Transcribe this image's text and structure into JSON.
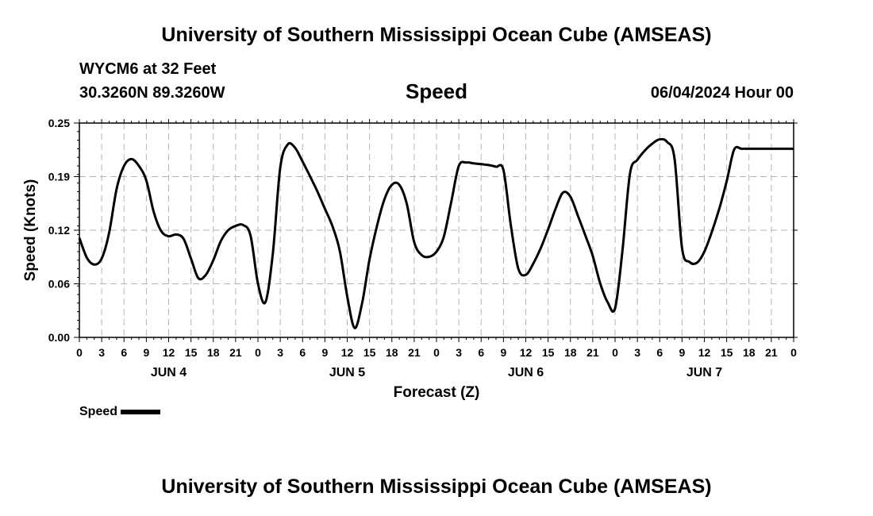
{
  "page": {
    "title": "University of Southern Mississippi Ocean Cube (AMSEAS)",
    "footer_title": "University of Southern Mississippi Ocean Cube (AMSEAS)",
    "station": "WYCM6 at 32 Feet",
    "coordinates": "30.3260N  89.3260W",
    "metric": "Speed",
    "datetime": "06/04/2024 Hour 00"
  },
  "legend": {
    "label": "Speed",
    "color": "#000000"
  },
  "chart_data": {
    "type": "line",
    "title": "Speed",
    "xlabel": "Forecast (Z)",
    "ylabel": "Speed (Knots)",
    "ylim": [
      0,
      0.25
    ],
    "y_ticks": [
      "0.00",
      "0.06",
      "0.12",
      "0.19",
      "0.25"
    ],
    "x_tick_labels": [
      "0",
      "3",
      "6",
      "9",
      "12",
      "15",
      "18",
      "21",
      "0",
      "3",
      "6",
      "9",
      "12",
      "15",
      "18",
      "21",
      "0",
      "3",
      "6",
      "9",
      "12",
      "15",
      "18",
      "21",
      "0",
      "3",
      "6",
      "9",
      "12",
      "15",
      "18",
      "21",
      "0"
    ],
    "day_labels": [
      "JUN 4",
      "JUN 5",
      "JUN 6",
      "JUN 7"
    ],
    "xlim_hours": [
      0,
      96
    ],
    "grid": true,
    "series": [
      {
        "name": "Speed",
        "color": "#000000",
        "x_hours": [
          0,
          1,
          2,
          3,
          4,
          5,
          6,
          7,
          8,
          9,
          10,
          11,
          12,
          13,
          14,
          15,
          16,
          17,
          18,
          19,
          20,
          21,
          22,
          23,
          24,
          25,
          26,
          27,
          28,
          29,
          30,
          31,
          32,
          33,
          34,
          35,
          36,
          37,
          38,
          39,
          40,
          41,
          42,
          43,
          44,
          45,
          46,
          47,
          48,
          49,
          50,
          51,
          52,
          53,
          54,
          55,
          56,
          57,
          58,
          59,
          60,
          61,
          62,
          63,
          64,
          65,
          66,
          67,
          68,
          69,
          70,
          71,
          72,
          73,
          74,
          75,
          76,
          77,
          78,
          79,
          80,
          81,
          82,
          83,
          84,
          85,
          86,
          87,
          88,
          89,
          90,
          91,
          92,
          93,
          94,
          95,
          96
        ],
        "values": [
          0.116,
          0.093,
          0.085,
          0.092,
          0.122,
          0.173,
          0.2,
          0.208,
          0.2,
          0.183,
          0.146,
          0.124,
          0.118,
          0.12,
          0.115,
          0.092,
          0.069,
          0.073,
          0.09,
          0.112,
          0.125,
          0.13,
          0.131,
          0.119,
          0.063,
          0.041,
          0.098,
          0.198,
          0.225,
          0.221,
          0.205,
          0.188,
          0.17,
          0.15,
          0.13,
          0.101,
          0.048,
          0.011,
          0.04,
          0.091,
          0.13,
          0.161,
          0.178,
          0.178,
          0.156,
          0.111,
          0.096,
          0.094,
          0.1,
          0.118,
          0.159,
          0.2,
          0.204,
          0.203,
          0.202,
          0.201,
          0.199,
          0.195,
          0.13,
          0.08,
          0.073,
          0.086,
          0.104,
          0.126,
          0.15,
          0.169,
          0.164,
          0.142,
          0.119,
          0.095,
          0.063,
          0.041,
          0.034,
          0.102,
          0.191,
          0.207,
          0.218,
          0.226,
          0.231,
          0.228,
          0.208,
          0.104,
          0.088,
          0.087,
          0.1,
          0.123,
          0.15,
          0.182,
          0.219,
          0.22,
          0.22,
          0.22,
          0.22,
          0.22,
          0.22,
          0.22,
          0.22
        ]
      }
    ]
  }
}
